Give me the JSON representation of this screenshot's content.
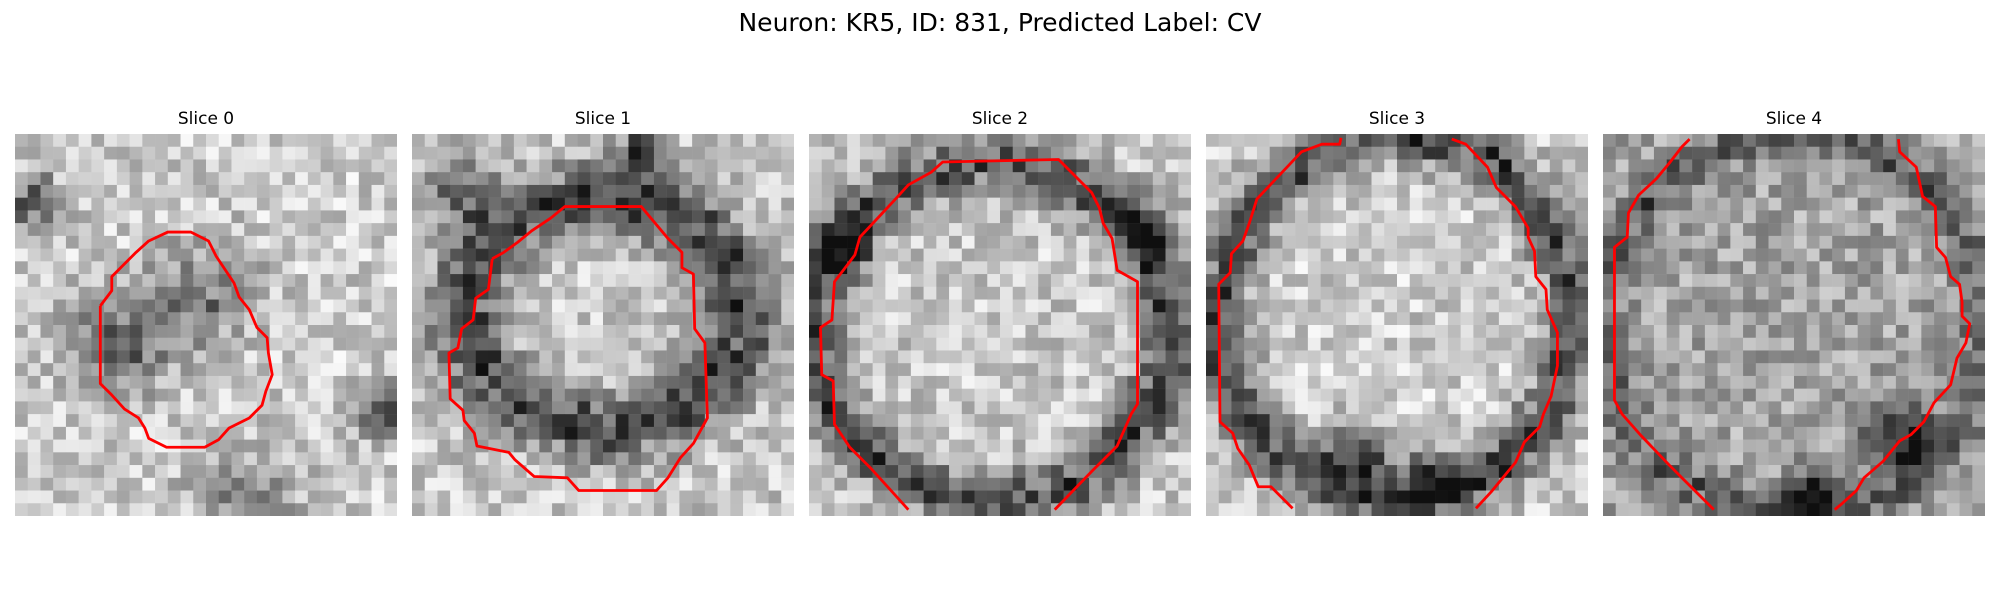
{
  "figure": {
    "title": "Neuron: KR5, ID: 831, Predicted Label: CV"
  },
  "panels": [
    {
      "title": "Slice 0",
      "seed": 11,
      "base": 205,
      "dark": [
        [
          0.27,
          0.55,
          0.09,
          110
        ],
        [
          0.5,
          0.42,
          0.1,
          80
        ],
        [
          0.06,
          0.18,
          0.05,
          120
        ],
        [
          0.96,
          0.73,
          0.05,
          130
        ],
        [
          0.6,
          0.95,
          0.1,
          60
        ]
      ],
      "contour_color": "#ff0000"
    },
    {
      "title": "Slice 1",
      "seed": 23,
      "base": 200,
      "ring": [
        0.5,
        0.47,
        0.36,
        0.3,
        0.06,
        130
      ],
      "dark": [
        [
          0.12,
          0.15,
          0.07,
          100
        ],
        [
          0.6,
          0.05,
          0.05,
          120
        ]
      ],
      "contour_color": "#ff0000"
    },
    {
      "title": "Slice 2",
      "seed": 37,
      "base": 200,
      "ring": [
        0.48,
        0.52,
        0.46,
        0.44,
        0.05,
        120
      ],
      "dark": [
        [
          0.08,
          0.3,
          0.05,
          140
        ],
        [
          0.9,
          0.25,
          0.05,
          120
        ]
      ],
      "contour_color": "#ff0000"
    },
    {
      "title": "Slice 3",
      "seed": 51,
      "base": 205,
      "ring": [
        0.5,
        0.48,
        0.46,
        0.48,
        0.05,
        130
      ],
      "dark": [
        [
          0.4,
          0.85,
          0.06,
          140
        ],
        [
          0.6,
          0.9,
          0.05,
          120
        ]
      ],
      "contour_color": "#ff0000"
    },
    {
      "title": "Slice 4",
      "seed": 67,
      "base": 165,
      "ring": [
        0.5,
        0.5,
        0.5,
        0.5,
        0.04,
        70
      ],
      "dark": [
        [
          0.78,
          0.8,
          0.06,
          130
        ],
        [
          0.55,
          0.95,
          0.05,
          140
        ]
      ],
      "contour_color": "#ff0000"
    }
  ]
}
